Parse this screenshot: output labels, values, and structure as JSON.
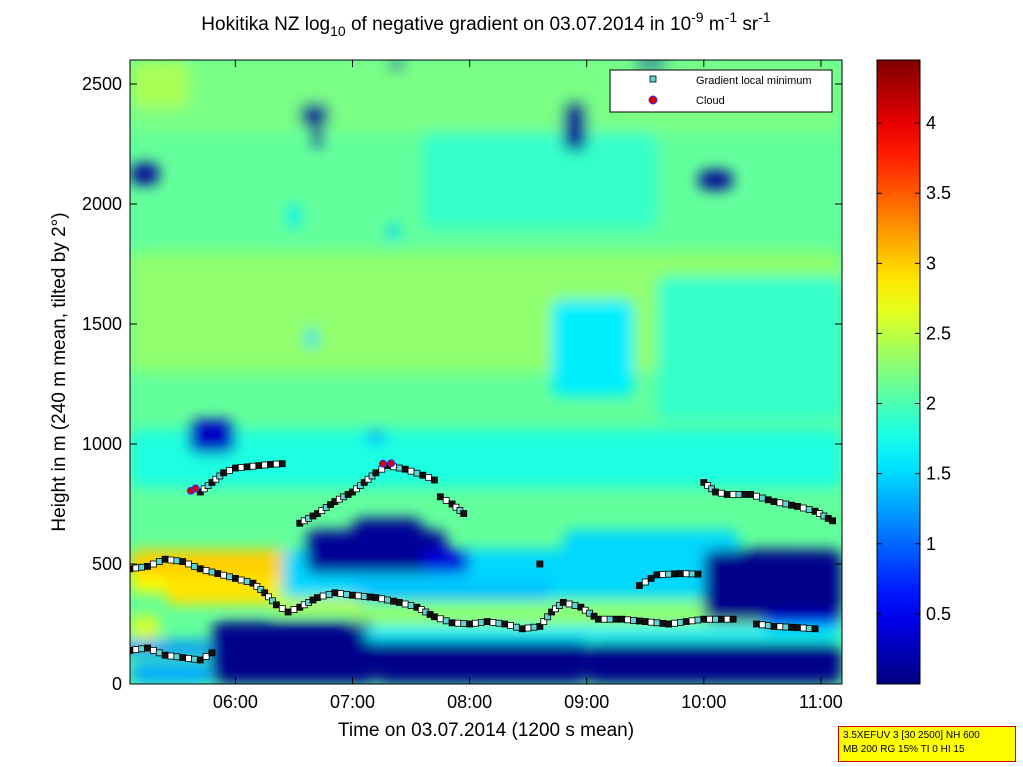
{
  "chart_data": {
    "type": "heatmap",
    "title": {
      "part1": "Hokitika NZ log",
      "sub1": "10",
      "part2": " of negative gradient on 03.07.2014 in 10",
      "sup1": "-9",
      "part3": " m",
      "sup2": "-1",
      "part4": " sr",
      "sup3": "-1"
    },
    "xlabel": "Time on 03.07.2014 (1200 s mean)",
    "ylabel": "Height in m (240 m mean, tilted by 2°)",
    "x_unit": "hours",
    "xlim": [
      5.1,
      11.18
    ],
    "ylim": [
      0,
      2600
    ],
    "x_ticks": [
      {
        "value": 6,
        "label": "06:00"
      },
      {
        "value": 7,
        "label": "07:00"
      },
      {
        "value": 8,
        "label": "08:00"
      },
      {
        "value": 9,
        "label": "09:00"
      },
      {
        "value": 10,
        "label": "10:00"
      },
      {
        "value": 11,
        "label": "11:00"
      }
    ],
    "y_ticks": [
      {
        "value": 0,
        "label": "0"
      },
      {
        "value": 500,
        "label": "500"
      },
      {
        "value": 1000,
        "label": "1000"
      },
      {
        "value": 1500,
        "label": "1500"
      },
      {
        "value": 2000,
        "label": "2000"
      },
      {
        "value": 2500,
        "label": "2500"
      }
    ],
    "colorbar": {
      "range": [
        0,
        4.45
      ],
      "ticks": [
        {
          "value": 0.5,
          "label": "0.5"
        },
        {
          "value": 1,
          "label": "1"
        },
        {
          "value": 1.5,
          "label": "1.5"
        },
        {
          "value": 2,
          "label": "2"
        },
        {
          "value": 2.5,
          "label": "2.5"
        },
        {
          "value": 3,
          "label": "3"
        },
        {
          "value": 3.5,
          "label": "3.5"
        },
        {
          "value": 4,
          "label": "4"
        }
      ]
    },
    "background_level": 2.1,
    "field_regions": [
      {
        "x": [
          5.1,
          11.18
        ],
        "y": [
          2300,
          2600
        ],
        "level": 2.2
      },
      {
        "x": [
          5.1,
          5.6
        ],
        "y": [
          2400,
          2600
        ],
        "level": 2.4
      },
      {
        "x": [
          5.1,
          11.18
        ],
        "y": [
          1300,
          1800
        ],
        "level": 2.3
      },
      {
        "x": [
          7.6,
          9.6
        ],
        "y": [
          1900,
          2300
        ],
        "level": 1.9
      },
      {
        "x": [
          8.7,
          9.4
        ],
        "y": [
          1200,
          1600
        ],
        "level": 1.6
      },
      {
        "x": [
          9.6,
          11.18
        ],
        "y": [
          1100,
          1700
        ],
        "level": 1.9
      },
      {
        "x": [
          5.1,
          11.18
        ],
        "y": [
          820,
          1060
        ],
        "level": 1.8
      },
      {
        "x": [
          5.6,
          6.0
        ],
        "y": [
          960,
          1100
        ],
        "level": 0.3
      },
      {
        "x": [
          5.1,
          6.8
        ],
        "y": [
          380,
          520
        ],
        "level": 2.8
      },
      {
        "x": [
          5.1,
          6.5
        ],
        "y": [
          450,
          560
        ],
        "level": 3.0
      },
      {
        "x": [
          5.4,
          6.4
        ],
        "y": [
          330,
          460
        ],
        "level": 2.9
      },
      {
        "x": [
          6.3,
          7.1
        ],
        "y": [
          300,
          400
        ],
        "level": 2.5
      },
      {
        "x": [
          7.0,
          11.18
        ],
        "y": [
          230,
          330
        ],
        "level": 2.3
      },
      {
        "x": [
          6.4,
          10.8
        ],
        "y": [
          360,
          560
        ],
        "level": 1.5
      },
      {
        "x": [
          8.8,
          10.3
        ],
        "y": [
          520,
          640
        ],
        "level": 1.5
      },
      {
        "x": [
          7.0,
          8.7
        ],
        "y": [
          350,
          430
        ],
        "level": 1.4
      },
      {
        "x": [
          6.6,
          7.8
        ],
        "y": [
          460,
          640
        ],
        "level": 0.1
      },
      {
        "x": [
          7.0,
          7.6
        ],
        "y": [
          540,
          690
        ],
        "level": 0.1
      },
      {
        "x": [
          7.6,
          8.0
        ],
        "y": [
          460,
          560
        ],
        "level": 0.4
      },
      {
        "x": [
          5.1,
          5.35
        ],
        "y": [
          160,
          290
        ],
        "level": 2.6
      },
      {
        "x": [
          5.0,
          5.8
        ],
        "y": [
          120,
          180
        ],
        "level": 1.2
      },
      {
        "x": [
          5.8,
          7.2
        ],
        "y": [
          0,
          260
        ],
        "level": 0.05
      },
      {
        "x": [
          7.2,
          9.0
        ],
        "y": [
          0,
          200
        ],
        "level": 0.05
      },
      {
        "x": [
          9.0,
          11.18
        ],
        "y": [
          0,
          170
        ],
        "level": 0.05
      },
      {
        "x": [
          5.1,
          5.8
        ],
        "y": [
          0,
          90
        ],
        "level": 1.3
      },
      {
        "x": [
          7.1,
          11.18
        ],
        "y": [
          180,
          240
        ],
        "level": 1.6
      },
      {
        "x": [
          10.0,
          11.18
        ],
        "y": [
          260,
          560
        ],
        "level": 0.05
      },
      {
        "x": [
          10.5,
          11.18
        ],
        "y": [
          240,
          280
        ],
        "level": 0.6
      },
      {
        "x": [
          5.1,
          5.35
        ],
        "y": [
          2080,
          2170
        ],
        "level": 0.1
      },
      {
        "x": [
          6.55,
          6.8
        ],
        "y": [
          2320,
          2420
        ],
        "level": 0.1
      },
      {
        "x": [
          6.65,
          6.75
        ],
        "y": [
          2240,
          2320
        ],
        "level": 0.1
      },
      {
        "x": [
          7.3,
          7.45
        ],
        "y": [
          2560,
          2600
        ],
        "level": 0.1
      },
      {
        "x": [
          8.8,
          9.0
        ],
        "y": [
          2220,
          2430
        ],
        "level": 0.1
      },
      {
        "x": [
          9.95,
          10.25
        ],
        "y": [
          2060,
          2140
        ],
        "level": 0.1
      },
      {
        "x": [
          9.4,
          9.7
        ],
        "y": [
          2560,
          2600
        ],
        "level": 0.1
      },
      {
        "x": [
          6.45,
          6.55
        ],
        "y": [
          1900,
          2000
        ],
        "level": 1.6
      },
      {
        "x": [
          6.6,
          6.7
        ],
        "y": [
          1400,
          1480
        ],
        "level": 1.5
      },
      {
        "x": [
          7.3,
          7.4
        ],
        "y": [
          1850,
          1920
        ],
        "level": 1.5
      },
      {
        "x": [
          7.1,
          7.3
        ],
        "y": [
          1000,
          1060
        ],
        "level": 1.4
      }
    ],
    "series": [
      {
        "name": "Gradient local minimum",
        "marker": "square",
        "segments": [
          [
            [
              5.7,
              800
            ],
            [
              5.8,
              840
            ],
            [
              5.9,
              880
            ],
            [
              6.0,
              900
            ],
            [
              6.1,
              905
            ],
            [
              6.2,
              910
            ],
            [
              6.3,
              915
            ],
            [
              6.4,
              918
            ]
          ],
          [
            [
              6.55,
              670
            ],
            [
              6.7,
              710
            ],
            [
              6.85,
              760
            ],
            [
              7.0,
              800
            ],
            [
              7.1,
              840
            ],
            [
              7.2,
              880
            ],
            [
              7.3,
              910
            ],
            [
              7.45,
              895
            ],
            [
              7.6,
              870
            ],
            [
              7.7,
              850
            ]
          ],
          [
            [
              7.75,
              780
            ],
            [
              7.85,
              750
            ],
            [
              7.95,
              710
            ]
          ],
          [
            [
              8.6,
              500
            ]
          ],
          [
            [
              10.0,
              840
            ],
            [
              10.1,
              800
            ],
            [
              10.2,
              790
            ],
            [
              10.4,
              790
            ],
            [
              10.6,
              760
            ],
            [
              10.8,
              740
            ],
            [
              10.95,
              720
            ],
            [
              11.1,
              680
            ]
          ],
          [
            [
              9.45,
              410
            ],
            [
              9.55,
              440
            ],
            [
              9.6,
              455
            ],
            [
              9.8,
              460
            ],
            [
              9.95,
              458
            ]
          ],
          [
            [
              5.1,
              480
            ],
            [
              5.25,
              490
            ],
            [
              5.4,
              520
            ],
            [
              5.55,
              510
            ],
            [
              5.7,
              480
            ],
            [
              5.85,
              460
            ],
            [
              6.0,
              440
            ],
            [
              6.15,
              420
            ],
            [
              6.25,
              380
            ],
            [
              6.35,
              330
            ],
            [
              6.45,
              300
            ],
            [
              6.55,
              320
            ],
            [
              6.7,
              360
            ],
            [
              6.85,
              380
            ],
            [
              7.0,
              370
            ],
            [
              7.2,
              360
            ],
            [
              7.4,
              340
            ],
            [
              7.55,
              320
            ],
            [
              7.7,
              280
            ],
            [
              7.85,
              255
            ],
            [
              8.0,
              250
            ],
            [
              8.15,
              260
            ],
            [
              8.3,
              250
            ],
            [
              8.45,
              230
            ],
            [
              8.6,
              240
            ],
            [
              8.7,
              300
            ],
            [
              8.8,
              340
            ],
            [
              8.95,
              320
            ],
            [
              9.1,
              270
            ],
            [
              9.3,
              270
            ],
            [
              9.5,
              260
            ],
            [
              9.7,
              250
            ],
            [
              9.85,
              260
            ],
            [
              10.0,
              270
            ],
            [
              10.25,
              270
            ]
          ],
          [
            [
              10.45,
              250
            ],
            [
              10.6,
              240
            ],
            [
              10.8,
              235
            ],
            [
              10.95,
              230
            ]
          ],
          [
            [
              5.1,
              140
            ],
            [
              5.25,
              150
            ],
            [
              5.4,
              120
            ],
            [
              5.55,
              110
            ],
            [
              5.7,
              100
            ],
            [
              5.8,
              130
            ]
          ]
        ]
      },
      {
        "name": "Cloud",
        "marker": "circle",
        "points": [
          [
            5.62,
            805
          ],
          [
            5.66,
            815
          ],
          [
            7.26,
            918
          ],
          [
            7.33,
            920
          ]
        ]
      }
    ],
    "legend_position": "top-right"
  },
  "info_box": {
    "line1": "3.5XEFUV 3 [30 2500] NH 600",
    "line2": "MB 200 RG 15% TI 0 HI 15"
  }
}
